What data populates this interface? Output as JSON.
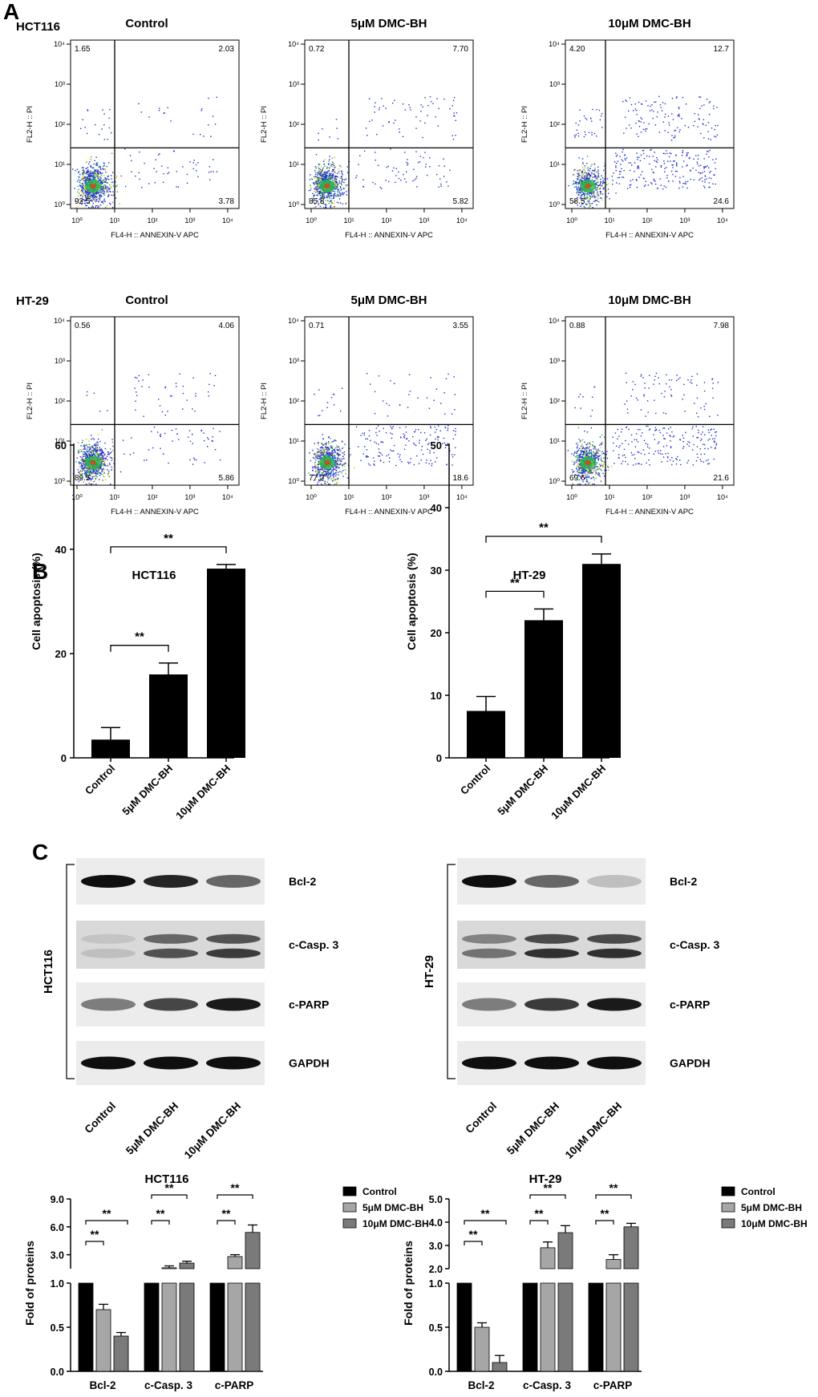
{
  "panels": {
    "A": "A",
    "B": "B",
    "C": "C"
  },
  "flow": {
    "cell_lines": [
      "HCT116",
      "HT-29"
    ],
    "conditions": [
      "Control",
      "5μM DMC-BH",
      "10μM DMC-BH"
    ],
    "x_axis_label": "FL4-H :: ANNEXIN-V APC",
    "y_axis_label": "FL2-H :: PI",
    "tick_labels": [
      "10⁰",
      "10¹",
      "10²",
      "10³",
      "10⁴"
    ],
    "plots": [
      {
        "row": 0,
        "col": 0,
        "ul": "1.65",
        "ur": "2.03",
        "ll": "92.5",
        "lr": "3.78"
      },
      {
        "row": 0,
        "col": 1,
        "ul": "0.72",
        "ur": "7.70",
        "ll": "85.8",
        "lr": "5.82"
      },
      {
        "row": 0,
        "col": 2,
        "ul": "4.20",
        "ur": "12.7",
        "ll": "58.5",
        "lr": "24.6"
      },
      {
        "row": 1,
        "col": 0,
        "ul": "0.56",
        "ur": "4.06",
        "ll": "89.5",
        "lr": "5.86"
      },
      {
        "row": 1,
        "col": 1,
        "ul": "0.71",
        "ur": "3.55",
        "ll": "77.2",
        "lr": "18.6"
      },
      {
        "row": 1,
        "col": 2,
        "ul": "0.88",
        "ur": "7.98",
        "ll": "69.6",
        "lr": "21.6"
      }
    ]
  },
  "chart_data": [
    {
      "type": "bar",
      "title": "HCT116",
      "ylabel": "Cell apoptosis (%)",
      "categories": [
        "Control",
        "5μM DMC-BH",
        "10μM DMC-BH"
      ],
      "values": [
        3.5,
        16,
        36.3
      ],
      "errors": [
        2.3,
        2.2,
        0.8
      ],
      "ylim": [
        0,
        60
      ],
      "yticks": [
        0,
        20,
        40,
        60
      ],
      "significance": [
        {
          "from": 0,
          "to": 1,
          "label": "**"
        },
        {
          "from": 0,
          "to": 2,
          "label": "**"
        }
      ]
    },
    {
      "type": "bar",
      "title": "HT-29",
      "ylabel": "Cell apoptosis (%)",
      "categories": [
        "Control",
        "5μM DMC-BH",
        "10μM DMC-BH"
      ],
      "values": [
        7.5,
        22,
        31
      ],
      "errors": [
        2.3,
        1.8,
        1.6
      ],
      "ylim": [
        0,
        50
      ],
      "yticks": [
        0,
        10,
        20,
        30,
        40,
        50
      ],
      "significance": [
        {
          "from": 0,
          "to": 1,
          "label": "**"
        },
        {
          "from": 0,
          "to": 2,
          "label": "**"
        }
      ]
    },
    {
      "type": "bar",
      "title": "HCT116",
      "ylabel": "Fold of proteins",
      "categories": [
        "Bcl-2",
        "c-Casp. 3",
        "c-PARP"
      ],
      "series": [
        {
          "name": "Control",
          "values": [
            1.0,
            1.0,
            1.0
          ],
          "errors": [
            0,
            0,
            0
          ]
        },
        {
          "name": "5μM DMC-BH",
          "values": [
            0.7,
            1.6,
            2.8
          ],
          "errors": [
            0.06,
            0.2,
            0.2
          ]
        },
        {
          "name": "10μM DMC-BH",
          "values": [
            0.4,
            2.1,
            5.4
          ],
          "errors": [
            0.04,
            0.2,
            0.8
          ]
        }
      ],
      "axis_break": true,
      "yticks_lower": [
        "0.0",
        "0.5",
        "1.0"
      ],
      "yticks_upper": [
        "3.0",
        "6.0",
        "9.0"
      ],
      "legend": "top-right",
      "significance_label": "**"
    },
    {
      "type": "bar",
      "title": "HT-29",
      "ylabel": "Fold of proteins",
      "categories": [
        "Bcl-2",
        "c-Casp. 3",
        "c-PARP"
      ],
      "series": [
        {
          "name": "Control",
          "values": [
            1.0,
            1.0,
            1.0
          ],
          "errors": [
            0,
            0,
            0
          ]
        },
        {
          "name": "5μM DMC-BH",
          "values": [
            0.5,
            2.9,
            2.4
          ],
          "errors": [
            0.05,
            0.25,
            0.2
          ]
        },
        {
          "name": "10μM DMC-BH",
          "values": [
            0.1,
            3.55,
            3.8
          ],
          "errors": [
            0.08,
            0.3,
            0.15
          ]
        }
      ],
      "axis_break": true,
      "yticks_lower": [
        "0.0",
        "0.5",
        "1.0"
      ],
      "yticks_upper": [
        "2.0",
        "3.0",
        "4.0",
        "5.0"
      ],
      "legend": "top-right",
      "significance_label": "**"
    }
  ],
  "western": {
    "proteins": [
      "Bcl-2",
      "c-Casp. 3",
      "c-PARP",
      "GAPDH"
    ],
    "lanes": [
      "Control",
      "5μM DMC-BH",
      "10μM DMC-BH"
    ],
    "blots": [
      {
        "cell_line": "HCT116",
        "intensity": [
          [
            1.0,
            0.9,
            0.6
          ],
          [
            0.2,
            0.7,
            0.8
          ],
          [
            0.5,
            0.75,
            0.95
          ],
          [
            1.0,
            1.0,
            1.0
          ]
        ]
      },
      {
        "cell_line": "HT-29",
        "intensity": [
          [
            1.0,
            0.6,
            0.2
          ],
          [
            0.55,
            0.85,
            0.85
          ],
          [
            0.5,
            0.8,
            0.95
          ],
          [
            1.0,
            1.0,
            1.0
          ]
        ]
      }
    ]
  },
  "colors": {
    "control": "#000000",
    "dose_5": "#a6a6a6",
    "dose_10": "#7a7a7a",
    "dot": "#1f2fd4"
  }
}
